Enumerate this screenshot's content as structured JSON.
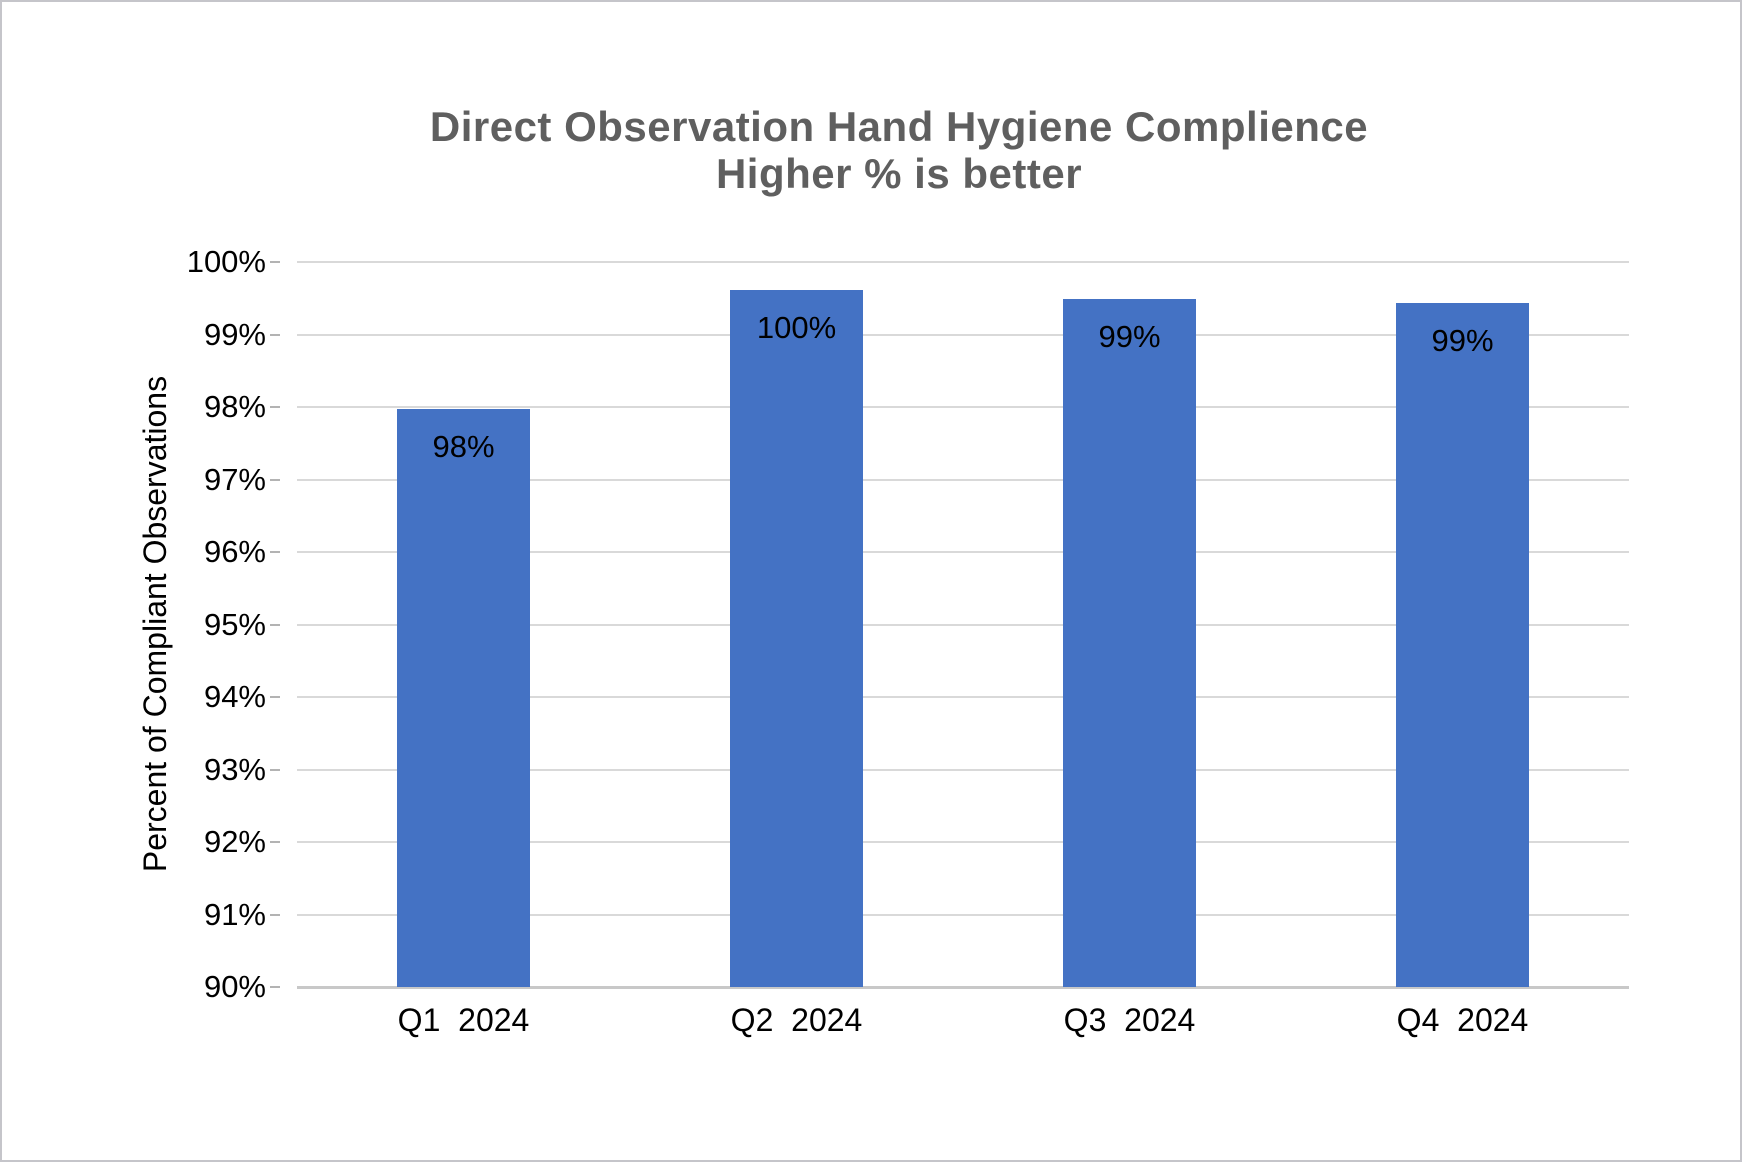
{
  "window": {
    "background": "#ffffff",
    "frame_border_color": "#c5c5ca"
  },
  "chart_data": {
    "type": "bar",
    "title": "Direct Observation Hand Hygiene Complience",
    "subtitle": "Higher % is better",
    "ylabel": "Percent of Compliant Observations",
    "xlabel": "",
    "categories": [
      "Q1  2024",
      "Q2  2024",
      "Q3  2024",
      "Q4  2024"
    ],
    "values": [
      97.97,
      99.61,
      99.49,
      99.43
    ],
    "data_labels": [
      "98%",
      "100%",
      "99%",
      "99%"
    ],
    "ylim": [
      90,
      100
    ],
    "y_tick_step": 1,
    "y_tick_labels": [
      "100%",
      "99%",
      "98%",
      "97%",
      "96%",
      "95%",
      "94%",
      "93%",
      "92%",
      "91%",
      "90%"
    ],
    "grid": true,
    "legend_position": "none",
    "bar_color": "#4472c4",
    "gridline_color": "#d9d9d9",
    "axis_line_color": "#c8c8c8",
    "title_color": "#5f5f5f",
    "text_color": "#000000"
  }
}
